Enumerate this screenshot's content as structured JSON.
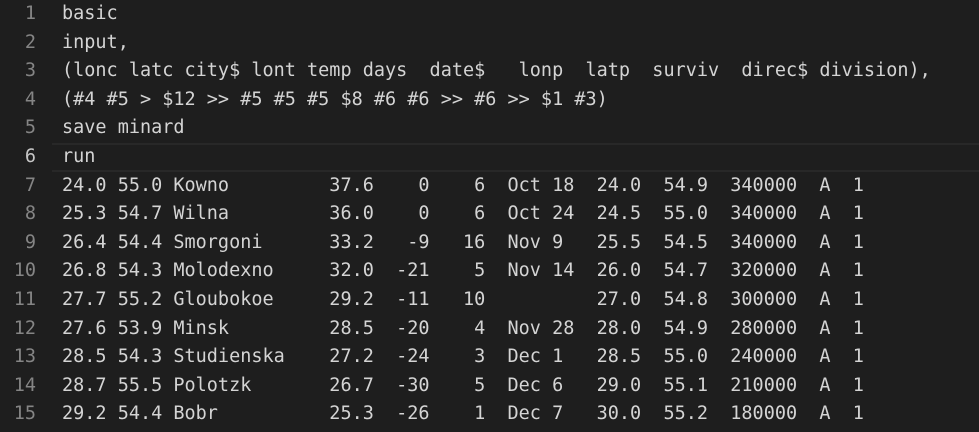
{
  "editor": {
    "lines": [
      {
        "number": "1",
        "text": "basic"
      },
      {
        "number": "2",
        "text": "input,"
      },
      {
        "number": "3",
        "text": "(lonc latc city$ lont temp days  date$   lonp  latp  surviv  direc$ division),"
      },
      {
        "number": "4",
        "text": "(#4 #5 > $12 >> #5 #5 #5 $8 #6 #6 >> #6 >> $1 #3)"
      },
      {
        "number": "5",
        "text": "save minard"
      },
      {
        "number": "6",
        "text": "run"
      },
      {
        "number": "7",
        "text": "24.0 55.0 Kowno         37.6    0    6  Oct 18  24.0  54.9  340000  A  1"
      },
      {
        "number": "8",
        "text": "25.3 54.7 Wilna         36.0    0    6  Oct 24  24.5  55.0  340000  A  1"
      },
      {
        "number": "9",
        "text": "26.4 54.4 Smorgoni      33.2   -9   16  Nov 9   25.5  54.5  340000  A  1"
      },
      {
        "number": "10",
        "text": "26.8 54.3 Molodexno     32.0  -21    5  Nov 14  26.0  54.7  320000  A  1"
      },
      {
        "number": "11",
        "text": "27.7 55.2 Gloubokoe     29.2  -11   10          27.0  54.8  300000  A  1"
      },
      {
        "number": "12",
        "text": "27.6 53.9 Minsk         28.5  -20    4  Nov 28  28.0  54.9  280000  A  1"
      },
      {
        "number": "13",
        "text": "28.5 54.3 Studienska    27.2  -24    3  Dec 1   28.5  55.0  240000  A  1"
      },
      {
        "number": "14",
        "text": "28.7 55.5 Polotzk       26.7  -30    5  Dec 6   29.0  55.1  210000  A  1"
      },
      {
        "number": "15",
        "text": "29.2 54.4 Bobr          25.3  -26    1  Dec 7   30.0  55.2  180000  A  1"
      }
    ]
  }
}
